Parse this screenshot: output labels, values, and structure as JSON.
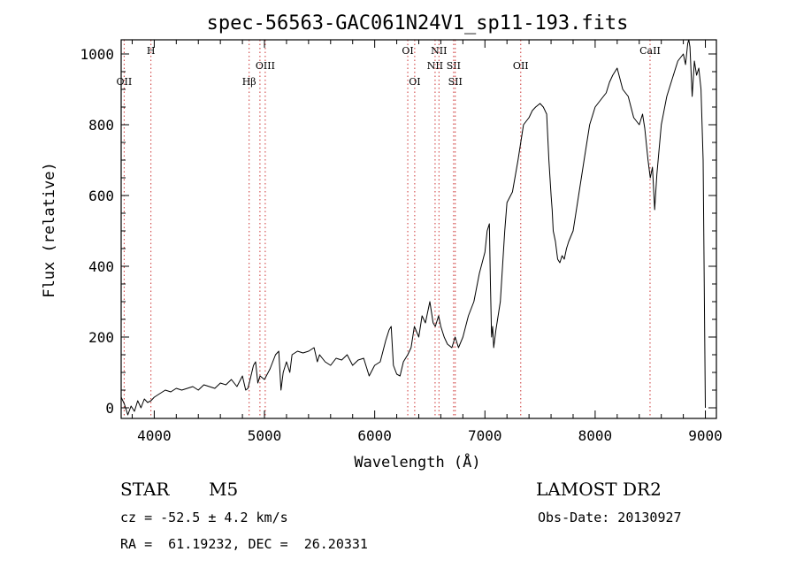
{
  "chart_data": {
    "type": "line",
    "title": "spec-56563-GAC061N24V1_sp11-193.fits",
    "xlabel": "Wavelength (Å)",
    "ylabel": "Flux (relative)",
    "xlim": [
      3700,
      9100
    ],
    "ylim": [
      -30,
      1040
    ],
    "xticks": [
      4000,
      5000,
      6000,
      7000,
      8000,
      9000
    ],
    "yticks": [
      0,
      200,
      400,
      600,
      800,
      1000
    ],
    "grid": false,
    "line_color": "#000000",
    "spectral_line_color": "#cc3333",
    "series": [
      {
        "x": [
          3700,
          3730,
          3760,
          3790,
          3820,
          3850,
          3880,
          3910,
          3940,
          3970,
          4000,
          4050,
          4100,
          4150,
          4200,
          4250,
          4300,
          4350,
          4400,
          4450,
          4500,
          4550,
          4600,
          4650,
          4700,
          4750,
          4800,
          4830,
          4850,
          4870,
          4900,
          4920,
          4940,
          4960,
          4980,
          5000,
          5050,
          5100,
          5130,
          5150,
          5170,
          5200,
          5230,
          5250,
          5300,
          5350,
          5400,
          5450,
          5480,
          5500,
          5550,
          5600,
          5650,
          5700,
          5750,
          5800,
          5850,
          5900,
          5950,
          6000,
          6050,
          6100,
          6130,
          6150,
          6170,
          6200,
          6230,
          6260,
          6300,
          6330,
          6360,
          6400,
          6430,
          6460,
          6500,
          6530,
          6550,
          6580,
          6600,
          6630,
          6660,
          6700,
          6730,
          6760,
          6800,
          6850,
          6900,
          6950,
          7000,
          7020,
          7040,
          7050,
          7060,
          7070,
          7080,
          7100,
          7120,
          7140,
          7160,
          7180,
          7200,
          7250,
          7300,
          7350,
          7400,
          7430,
          7460,
          7500,
          7530,
          7560,
          7580,
          7600,
          7610,
          7620,
          7640,
          7660,
          7680,
          7700,
          7720,
          7740,
          7760,
          7800,
          7850,
          7900,
          7950,
          8000,
          8050,
          8100,
          8130,
          8160,
          8200,
          8250,
          8300,
          8350,
          8400,
          8430,
          8450,
          8480,
          8500,
          8520,
          8540,
          8560,
          8600,
          8650,
          8700,
          8750,
          8800,
          8820,
          8840,
          8850,
          8860,
          8880,
          8900,
          8920,
          8940,
          8960,
          8980,
          9000
        ],
        "y": [
          30,
          10,
          -20,
          5,
          -10,
          20,
          0,
          25,
          15,
          20,
          30,
          40,
          50,
          45,
          55,
          50,
          55,
          60,
          50,
          65,
          60,
          55,
          70,
          65,
          80,
          60,
          90,
          50,
          55,
          80,
          120,
          130,
          70,
          90,
          85,
          80,
          110,
          150,
          160,
          50,
          100,
          130,
          100,
          150,
          160,
          155,
          160,
          170,
          130,
          150,
          130,
          120,
          140,
          135,
          150,
          120,
          135,
          140,
          90,
          120,
          130,
          190,
          220,
          230,
          120,
          95,
          90,
          130,
          150,
          170,
          230,
          200,
          260,
          240,
          300,
          240,
          230,
          260,
          230,
          200,
          180,
          170,
          200,
          170,
          200,
          260,
          300,
          380,
          440,
          500,
          520,
          350,
          200,
          230,
          170,
          220,
          260,
          300,
          400,
          500,
          580,
          610,
          700,
          800,
          820,
          840,
          850,
          860,
          850,
          830,
          700,
          600,
          560,
          500,
          470,
          420,
          410,
          430,
          420,
          450,
          470,
          500,
          600,
          700,
          800,
          850,
          870,
          890,
          920,
          940,
          960,
          900,
          880,
          820,
          800,
          830,
          790,
          700,
          650,
          680,
          560,
          660,
          800,
          880,
          930,
          980,
          1000,
          970,
          1030,
          1040,
          1020,
          880,
          980,
          940,
          960,
          900,
          700,
          0
        ]
      }
    ],
    "spectral_lines": [
      {
        "wave": 3727,
        "label": "OII",
        "row": 2
      },
      {
        "wave": 3970,
        "label": "H",
        "row": 0
      },
      {
        "wave": 4861,
        "label": "Hβ",
        "row": 2
      },
      {
        "wave": 4959,
        "label": "",
        "row": 1
      },
      {
        "wave": 5007,
        "label": "OIII",
        "row": 1
      },
      {
        "wave": 6300,
        "label": "OI",
        "row": 0
      },
      {
        "wave": 6363,
        "label": "OI",
        "row": 2
      },
      {
        "wave": 6548,
        "label": "NII",
        "row": 1
      },
      {
        "wave": 6583,
        "label": "NII",
        "row": 0
      },
      {
        "wave": 6716,
        "label": "SII",
        "row": 1
      },
      {
        "wave": 6731,
        "label": "SII",
        "row": 2
      },
      {
        "wave": 7325,
        "label": "OII",
        "row": 1
      },
      {
        "wave": 8498,
        "label": "CaII",
        "row": 0
      }
    ]
  },
  "info": {
    "object_class": "STAR",
    "subclass": "M5",
    "survey": "LAMOST DR2",
    "cz": "cz = -52.5 ± 4.2 km/s",
    "obs_date": "Obs-Date: 20130927",
    "coords": "RA =  61.19232, DEC =  26.20331"
  }
}
